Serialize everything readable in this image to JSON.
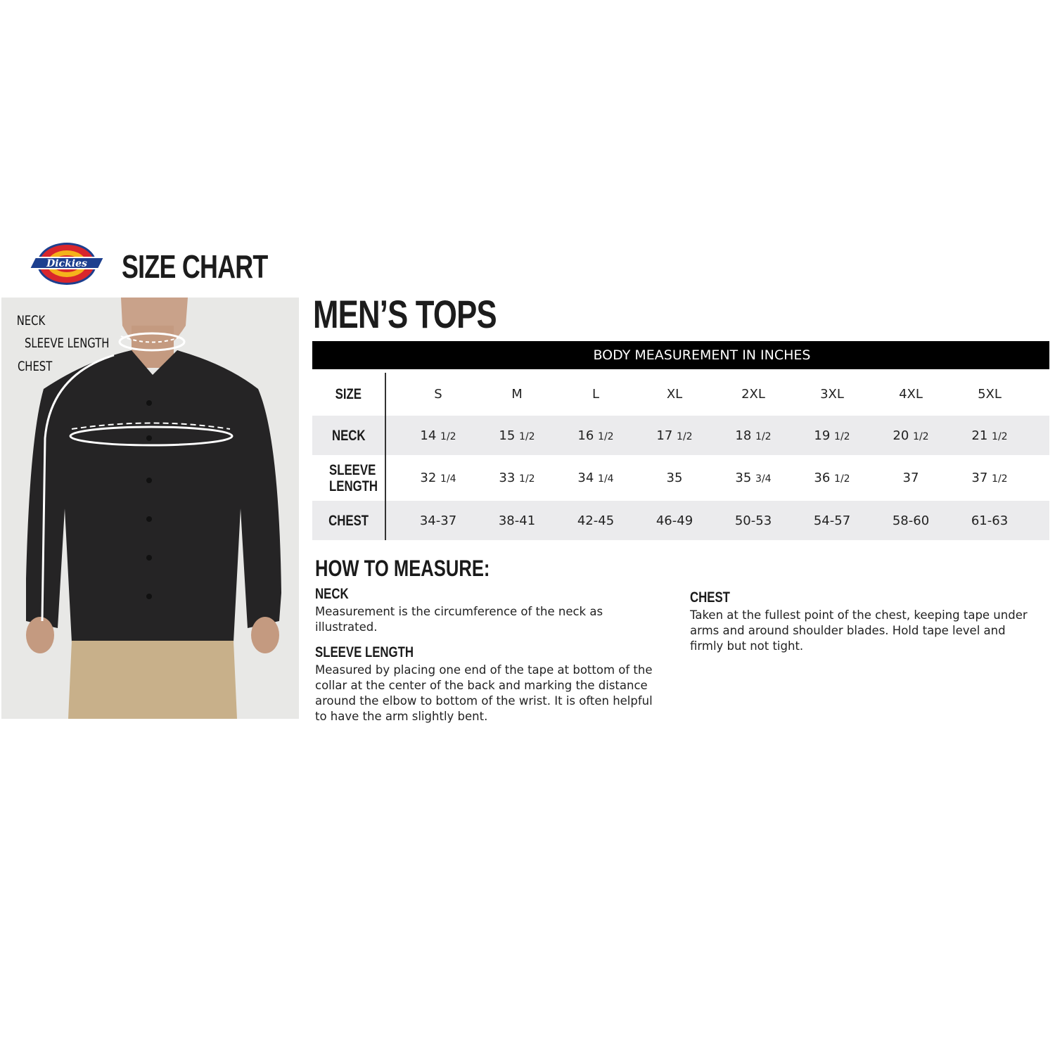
{
  "brand": {
    "logo_text": "Dickies",
    "colors": {
      "red": "#d9262c",
      "yellow": "#f5b21b",
      "blue": "#1d3f8f"
    }
  },
  "header": {
    "title": "SIZE CHART"
  },
  "photo": {
    "labels": [
      "NECK",
      "SLEEVE LENGTH",
      "CHEST"
    ]
  },
  "section_title": "MEN’S TOPS",
  "table": {
    "caption": "BODY MEASUREMENT IN INCHES",
    "size_label": "SIZE",
    "sizes": [
      "S",
      "M",
      "L",
      "XL",
      "2XL",
      "3XL",
      "4XL",
      "5XL"
    ],
    "rows": [
      {
        "label": "NECK",
        "values": [
          [
            "14",
            "1/2"
          ],
          [
            "15",
            "1/2"
          ],
          [
            "16",
            "1/2"
          ],
          [
            "17",
            "1/2"
          ],
          [
            "18",
            "1/2"
          ],
          [
            "19",
            "1/2"
          ],
          [
            "20",
            "1/2"
          ],
          [
            "21",
            "1/2"
          ]
        ]
      },
      {
        "label": "SLEEVE LENGTH",
        "values": [
          [
            "32",
            "1/4"
          ],
          [
            "33",
            "1/2"
          ],
          [
            "34",
            "1/4"
          ],
          [
            "35",
            ""
          ],
          [
            "35",
            "3/4"
          ],
          [
            "36",
            "1/2"
          ],
          [
            "37",
            ""
          ],
          [
            "37",
            "1/2"
          ]
        ]
      },
      {
        "label": "CHEST",
        "values": [
          [
            "34-37",
            ""
          ],
          [
            "38-41",
            ""
          ],
          [
            "42-45",
            ""
          ],
          [
            "46-49",
            ""
          ],
          [
            "50-53",
            ""
          ],
          [
            "54-57",
            ""
          ],
          [
            "58-60",
            ""
          ],
          [
            "61-63",
            ""
          ]
        ]
      }
    ]
  },
  "how_to": {
    "title": "HOW TO MEASURE:",
    "neck": {
      "heading": "NECK",
      "text": "Measurement is the circumference of the neck as illustrated."
    },
    "sleeve": {
      "heading": "SLEEVE LENGTH",
      "text": "Measured by placing one end of the tape at bottom of the collar at the center of the back and marking the distance around the elbow to bottom of the wrist. It is often helpful to have the arm slightly bent."
    },
    "chest": {
      "heading": "CHEST",
      "text": "Taken at the fullest point of the chest, keeping tape under arms and around shoulder blades. Hold tape level and firmly but not tight."
    }
  }
}
